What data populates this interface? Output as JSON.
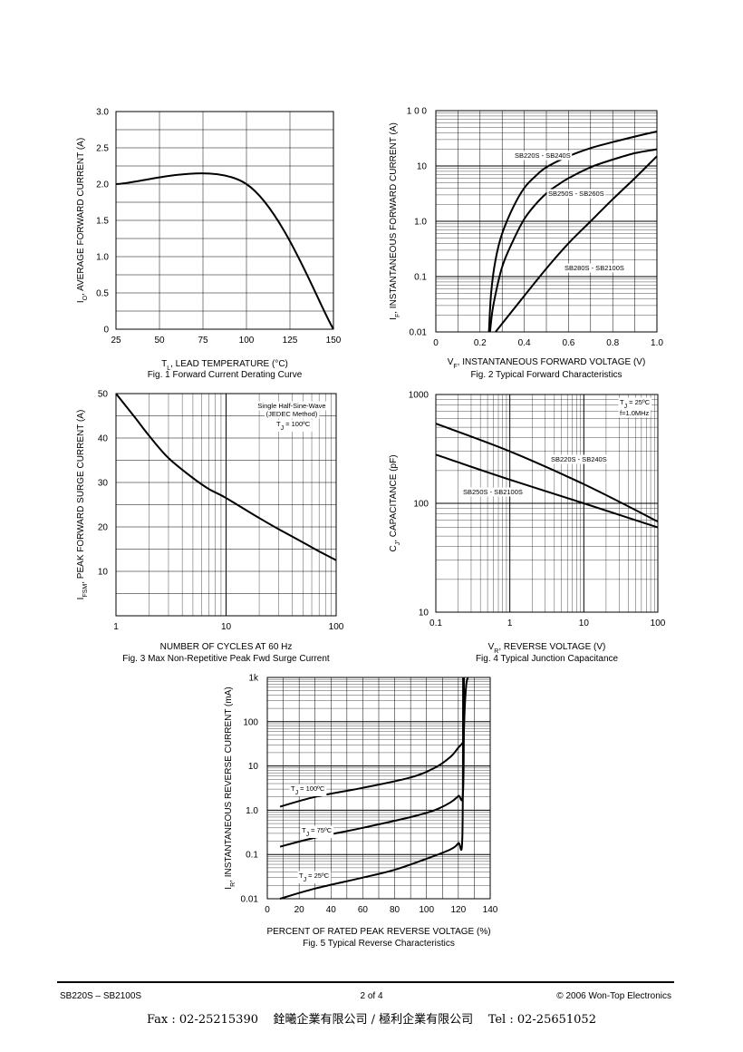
{
  "chart_data": [
    {
      "id": "fig1",
      "type": "line",
      "caption": "Fig. 1  Forward Current Derating Curve",
      "xlabel": "Tₗ",
      "xlabel_main": "T",
      "xlabel_sub": "L",
      "xlabel_rest": ",  LEAD TEMPERATURE (°C)",
      "ylabel_main": "I",
      "ylabel_sub": "O",
      "ylabel_rest": ", AVERAGE FORWARD CURRENT (A)",
      "xlim": [
        25,
        150
      ],
      "ylim": [
        0,
        3.0
      ],
      "xticks": [
        25,
        50,
        75,
        100,
        125,
        150
      ],
      "xtick_labels": [
        "25",
        "50",
        "75",
        "100",
        "125",
        "150"
      ],
      "yticks": [
        0,
        0.5,
        1.0,
        1.5,
        2.0,
        2.5,
        3.0
      ],
      "ytick_labels": [
        "0",
        "0.5",
        "1.0",
        "1.5",
        "2.0",
        "2.5",
        "3.0"
      ],
      "series": [
        {
          "x": [
            25,
            100,
            150
          ],
          "y": [
            2.0,
            2.0,
            0
          ]
        }
      ]
    },
    {
      "id": "fig2",
      "type": "line",
      "log_y": true,
      "caption": "Fig. 2  Typical Forward Characteristics",
      "xlabel_main": "V",
      "xlabel_sub": "F",
      "xlabel_rest": ", INSTANTANEOUS FORWARD VOLTAGE (V)",
      "ylabel_main": "I",
      "ylabel_sub": "F",
      "ylabel_rest": ", INSTANTANEOUS FORWARD CURRENT (A)",
      "xlim": [
        0,
        1.0
      ],
      "ylim": [
        0.01,
        100
      ],
      "xticks": [
        0,
        0.2,
        0.4,
        0.6,
        0.8,
        1.0
      ],
      "xtick_labels": [
        "0",
        "0.2",
        "0.4",
        "0.6",
        "0.8",
        "1.0"
      ],
      "yticks": [
        0.01,
        0.1,
        1,
        10,
        100
      ],
      "ytick_labels": [
        "0.01",
        "0.1",
        "1.0",
        "10",
        "1 0 0"
      ],
      "series": [
        {
          "name": "SB220S - SB240S",
          "x": [
            0.24,
            0.25,
            0.27,
            0.3,
            0.35,
            0.4,
            0.45,
            0.5,
            0.6,
            0.7,
            0.8,
            0.9,
            1.0
          ],
          "y": [
            0.01,
            0.05,
            0.2,
            0.6,
            1.8,
            4,
            6.5,
            9.5,
            15,
            21,
            27,
            34,
            42
          ]
        },
        {
          "name": "SB250S - SB260S",
          "x": [
            0.245,
            0.26,
            0.3,
            0.35,
            0.4,
            0.45,
            0.5,
            0.55,
            0.6,
            0.7,
            0.8,
            0.9,
            1.0
          ],
          "y": [
            0.01,
            0.03,
            0.15,
            0.45,
            1.1,
            2.0,
            3.2,
            4.5,
            6,
            9.5,
            13,
            17,
            20
          ]
        },
        {
          "name": "SB280S - SB2100S",
          "x": [
            0.27,
            0.4,
            0.5,
            0.6,
            0.7,
            0.8,
            0.9,
            1.0
          ],
          "y": [
            0.01,
            0.045,
            0.14,
            0.4,
            1.0,
            2.5,
            6,
            15
          ]
        }
      ]
    },
    {
      "id": "fig3",
      "type": "line",
      "log_x": true,
      "caption": "Fig. 3  Max Non-Repetitive Peak Fwd Surge Current",
      "xlabel": "NUMBER OF CYCLES AT 60 Hz",
      "ylabel_main": "I",
      "ylabel_sub": "FSM",
      "ylabel_rest": ", PEAK FORWARD SURGE CURRENT (A)",
      "xlim": [
        1,
        100
      ],
      "ylim": [
        0,
        50
      ],
      "xticks": [
        1,
        10,
        100
      ],
      "xtick_labels": [
        "1",
        "10",
        "100"
      ],
      "yticks": [
        0,
        10,
        20,
        30,
        40,
        50
      ],
      "ytick_labels": [
        "",
        "10",
        "20",
        "30",
        "40",
        "50"
      ],
      "annotation": [
        "Single Half-Sine-Wave",
        "(JEDEC Method)"
      ],
      "annotation_tj_main": "T",
      "annotation_tj_sub": "J",
      "annotation_tj_rest": " = 100ºC",
      "series": [
        {
          "x": [
            1,
            1.5,
            2,
            3,
            5,
            7,
            10,
            20,
            30,
            50,
            70,
            100
          ],
          "y": [
            50,
            44.5,
            40.5,
            35.5,
            31,
            28.5,
            26.5,
            22,
            19.5,
            16.5,
            14.5,
            12.5
          ]
        }
      ]
    },
    {
      "id": "fig4",
      "type": "line",
      "log_x": true,
      "log_y": true,
      "caption": "Fig. 4  Typical Junction Capacitance",
      "xlabel_main": "V",
      "xlabel_sub": "R",
      "xlabel_rest": ", REVERSE VOLTAGE (V)",
      "ylabel_main": "C",
      "ylabel_sub": "J",
      "ylabel_rest": ", CAPACITANCE (pF)",
      "xlim": [
        0.1,
        100
      ],
      "ylim": [
        10,
        1000
      ],
      "xticks": [
        0.1,
        1,
        10,
        100
      ],
      "xtick_labels": [
        "0.1",
        "1",
        "10",
        "100"
      ],
      "yticks": [
        10,
        100,
        1000
      ],
      "ytick_labels": [
        "10",
        "100",
        "1000"
      ],
      "annotation_tj_main": "T",
      "annotation_tj_sub": "J",
      "annotation_tj_rest": " = 25ºC",
      "annotation_freq": "f=1.0MHz",
      "series": [
        {
          "name": "SB220S - SB240S",
          "x": [
            0.1,
            1,
            10,
            100
          ],
          "y": [
            540,
            300,
            150,
            68
          ]
        },
        {
          "name": "SB250S - SB2100S",
          "x": [
            0.1,
            1,
            10,
            100
          ],
          "y": [
            280,
            165,
            100,
            60
          ]
        }
      ]
    },
    {
      "id": "fig5",
      "type": "line",
      "log_y": true,
      "caption": "Fig. 5  Typical Reverse Characteristics",
      "xlabel": "PERCENT OF RATED PEAK REVERSE VOLTAGE (%)",
      "ylabel_main": "I",
      "ylabel_sub": "R",
      "ylabel_rest": ", INSTANTANEOUS REVERSE CURRENT (mA)",
      "xlim": [
        0,
        140
      ],
      "ylim": [
        0.01,
        1000
      ],
      "xticks": [
        0,
        20,
        40,
        60,
        80,
        100,
        120,
        140
      ],
      "xtick_labels": [
        "0",
        "20",
        "40",
        "60",
        "80",
        "100",
        "120",
        "140"
      ],
      "yticks": [
        0.01,
        0.1,
        1,
        10,
        100,
        1000
      ],
      "ytick_labels": [
        "0.01",
        "0.1",
        "1.0",
        "10",
        "100",
        "1k"
      ],
      "series": [
        {
          "name": "Tⱼ = 100ºC",
          "label_main": "T",
          "label_sub": "J",
          "label_rest": " = 100ºC",
          "x": [
            8,
            30,
            60,
            90,
            105,
            115,
            120,
            123,
            123.5,
            124,
            125,
            126
          ],
          "y": [
            1.2,
            2.0,
            3.2,
            5.5,
            9,
            16,
            26,
            35,
            60,
            200,
            700,
            1000
          ]
        },
        {
          "name": "Tⱼ = 75ºC",
          "label_main": "T",
          "label_sub": "J",
          "label_rest": " = 75ºC",
          "x": [
            8,
            30,
            60,
            90,
            105,
            115,
            120,
            123,
            123.5
          ],
          "y": [
            0.15,
            0.24,
            0.4,
            0.7,
            1.0,
            1.5,
            2.1,
            2.8,
            1000
          ]
        },
        {
          "name": "Tⱼ = 25ºC",
          "label_main": "T",
          "label_sub": "J",
          "label_rest": " = 25ºC",
          "x": [
            8,
            30,
            60,
            80,
            100,
            115,
            120,
            122.5,
            123
          ],
          "y": [
            0.01,
            0.017,
            0.03,
            0.045,
            0.08,
            0.13,
            0.18,
            0.26,
            1000
          ]
        }
      ]
    }
  ],
  "footer": {
    "left": "SB220S – SB2100S",
    "center": "2 of 4",
    "right": "© 2006 Won-Top Electronics"
  },
  "fax_line": "Fax : 02-25215390    銓曦企業有限公司 / 極利企業有限公司    Tel : 02-25651052"
}
